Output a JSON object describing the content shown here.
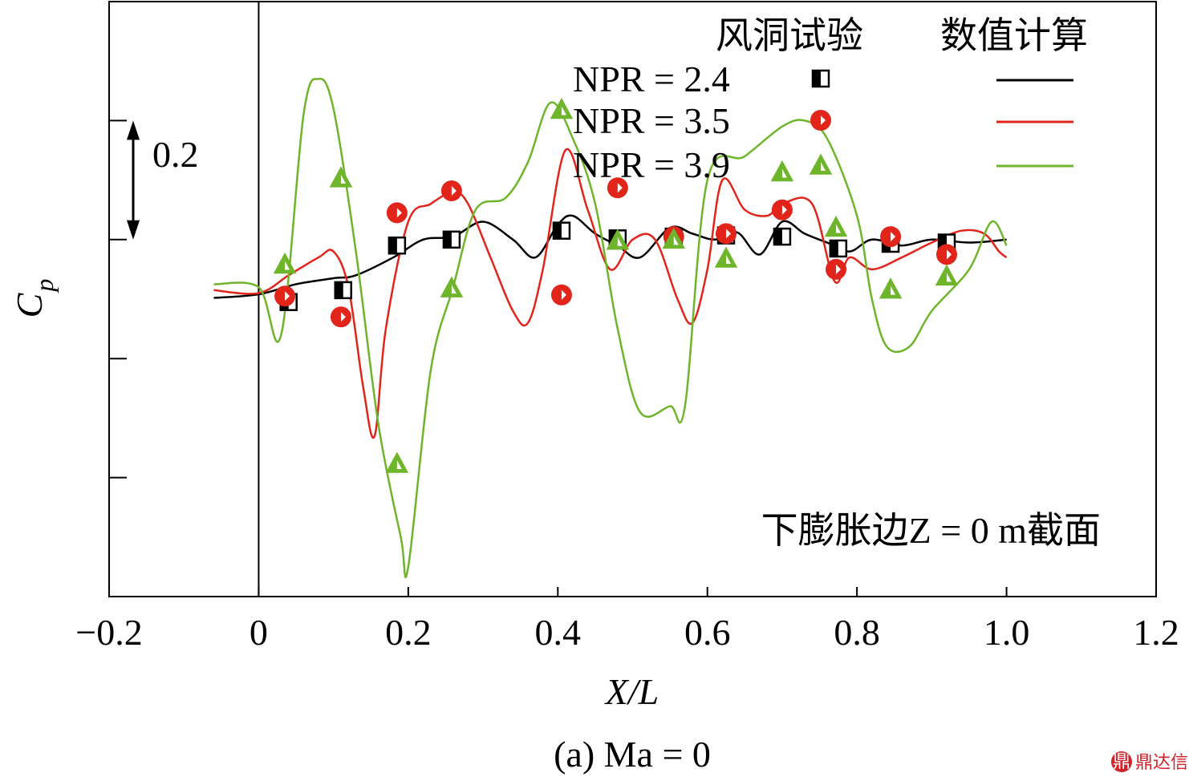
{
  "chart_data": {
    "type": "line",
    "xlabel": "X/L",
    "ylabel_main": "C",
    "ylabel_sub": "p",
    "xlim": [
      -0.2,
      1.2
    ],
    "ylim": [
      -0.6,
      0.4
    ],
    "x_ticks": [
      -0.2,
      0,
      0.2,
      0.4,
      0.6,
      0.8,
      1.0,
      1.2
    ],
    "x_tick_labels": [
      "−0.2",
      "0",
      "0.2",
      "0.4",
      "0.6",
      "0.8",
      "1.0",
      "1.2"
    ],
    "y_ticks": [
      0.2,
      0.0,
      -0.2,
      -0.4
    ],
    "scale_bar": {
      "label": "0.2",
      "from": 0.2,
      "to": 0.0
    },
    "grid": false,
    "legend": {
      "position": "top-right",
      "header_exp": "风洞试验",
      "header_num": "数值计算"
    },
    "annotation": "下膨胀边Z = 0 m截面",
    "caption": "(a) Ma = 0",
    "series": [
      {
        "name": "NPR = 2.4",
        "color": "#000000",
        "marker": "half-square",
        "experiment": {
          "x": [
            0.04,
            0.113,
            0.185,
            0.258,
            0.405,
            0.48,
            0.555,
            0.625,
            0.7,
            0.775,
            0.845,
            0.92
          ],
          "y": [
            -0.105,
            -0.085,
            -0.01,
            0.0,
            0.015,
            0.002,
            0.005,
            0.007,
            0.005,
            -0.015,
            -0.007,
            -0.005
          ]
        },
        "numerical": {
          "x": [
            -0.06,
            0.0,
            0.05,
            0.1,
            0.13,
            0.18,
            0.22,
            0.26,
            0.3,
            0.34,
            0.37,
            0.4,
            0.42,
            0.45,
            0.48,
            0.51,
            0.55,
            0.58,
            0.61,
            0.64,
            0.67,
            0.7,
            0.73,
            0.76,
            0.79,
            0.82,
            0.86,
            0.9,
            0.95,
            1.0
          ],
          "y": [
            -0.098,
            -0.092,
            -0.075,
            -0.065,
            -0.06,
            -0.03,
            0.0,
            0.005,
            0.03,
            0.0,
            -0.03,
            0.025,
            0.04,
            0.01,
            -0.01,
            -0.03,
            0.02,
            0.01,
            0.0,
            0.012,
            -0.025,
            0.03,
            0.01,
            -0.005,
            -0.02,
            0.0,
            -0.01,
            0.0,
            -0.005,
            0.0
          ]
        }
      },
      {
        "name": "NPR = 3.5",
        "color": "#e1251b",
        "marker": "half-circle",
        "experiment": {
          "x": [
            0.035,
            0.11,
            0.185,
            0.258,
            0.405,
            0.48,
            0.555,
            0.625,
            0.7,
            0.772,
            0.845,
            0.92
          ],
          "y": [
            -0.095,
            -0.13,
            0.045,
            0.082,
            -0.093,
            0.087,
            0.005,
            0.01,
            0.05,
            -0.05,
            0.005,
            -0.025
          ]
        },
        "numerical": {
          "x": [
            -0.06,
            0.0,
            0.04,
            0.08,
            0.1,
            0.12,
            0.14,
            0.155,
            0.17,
            0.2,
            0.23,
            0.26,
            0.28,
            0.31,
            0.34,
            0.36,
            0.38,
            0.41,
            0.44,
            0.47,
            0.5,
            0.53,
            0.56,
            0.58,
            0.6,
            0.62,
            0.65,
            0.68,
            0.7,
            0.74,
            0.77,
            0.79,
            0.82,
            0.86,
            0.9,
            0.94,
            0.97,
            0.99,
            1.0
          ],
          "y": [
            -0.085,
            -0.09,
            -0.06,
            -0.03,
            -0.02,
            -0.08,
            -0.25,
            -0.33,
            -0.15,
            0.03,
            0.06,
            0.08,
            0.06,
            -0.03,
            -0.12,
            -0.14,
            -0.05,
            0.15,
            0.05,
            -0.05,
            0.0,
            0.0,
            -0.1,
            -0.14,
            -0.05,
            0.1,
            0.05,
            0.04,
            0.06,
            0.06,
            -0.07,
            -0.03,
            -0.05,
            -0.03,
            -0.005,
            0.015,
            0.01,
            -0.02,
            -0.03
          ]
        }
      },
      {
        "name": "NPR = 3.9",
        "color": "#6fb52c",
        "marker": "half-triangle",
        "experiment": {
          "x": [
            0.035,
            0.11,
            0.185,
            0.258,
            0.405,
            0.48,
            0.555,
            0.625,
            0.7,
            0.772,
            0.845,
            0.92
          ],
          "y": [
            -0.04,
            0.105,
            -0.375,
            -0.08,
            0.22,
            0.0,
            0.002,
            -0.03,
            0.115,
            0.022,
            -0.082,
            -0.06
          ]
        },
        "numerical": {
          "x": [
            -0.06,
            0.0,
            0.03,
            0.06,
            0.08,
            0.1,
            0.13,
            0.16,
            0.19,
            0.2,
            0.23,
            0.26,
            0.29,
            0.33,
            0.36,
            0.39,
            0.42,
            0.45,
            0.48,
            0.51,
            0.55,
            0.57,
            0.6,
            0.65,
            0.7,
            0.73,
            0.76,
            0.8,
            0.82,
            0.84,
            0.87,
            0.9,
            0.95,
            0.98,
            1.0
          ],
          "y": [
            -0.075,
            -0.08,
            -0.16,
            0.21,
            0.27,
            0.22,
            -0.02,
            -0.31,
            -0.5,
            -0.55,
            -0.22,
            -0.08,
            0.05,
            0.07,
            0.13,
            0.23,
            0.17,
            0.06,
            -0.15,
            -0.29,
            -0.28,
            -0.28,
            0.1,
            0.14,
            0.19,
            0.2,
            0.17,
            0.04,
            -0.1,
            -0.18,
            -0.18,
            -0.12,
            -0.05,
            0.03,
            -0.01
          ]
        }
      }
    ]
  },
  "watermark": {
    "badge": "鼎",
    "text": "鼎达信"
  }
}
